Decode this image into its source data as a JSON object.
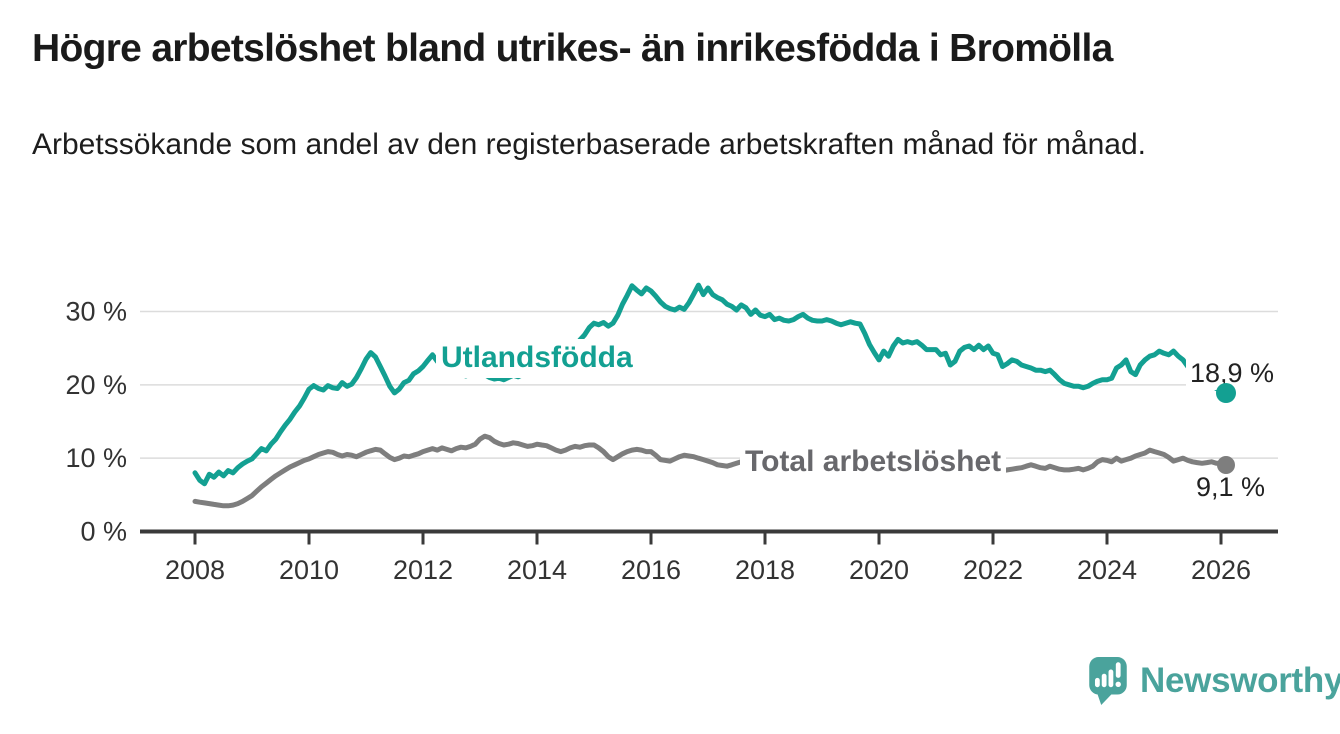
{
  "header": {
    "title": "Högre arbetslöshet bland utrikes- än inrikesfödda i Bromölla",
    "subtitle": "Arbetssökande som andel av den registerbaserade arbetskraften månad för månad."
  },
  "chart_data": {
    "type": "line",
    "title": "Högre arbetslöshet bland utrikes- än inrikesfödda i Bromölla",
    "subtitle": "Arbetssökande som andel av den registerbaserade arbetskraften månad för månad.",
    "unit": "%",
    "x_start": 2008.0,
    "x_resolution": "monthly",
    "x_range_note": "2008-01 to 2026-02",
    "x_ticks": [
      2008,
      2010,
      2012,
      2014,
      2016,
      2018,
      2020,
      2022,
      2024,
      2026
    ],
    "y_ticks": [
      0,
      10,
      20,
      30
    ],
    "y_tick_labels": [
      "0 %",
      "10 %",
      "20 %",
      "30 %"
    ],
    "ylim": [
      0,
      36
    ],
    "grid": "horizontal",
    "colors": {
      "grid": "#dcdcdc",
      "axis": "#3a3a3a",
      "tick_text": "#333333",
      "end_label_text": "#222222"
    },
    "series": [
      {
        "name": "Utlandsfödda",
        "color": "#13a092",
        "label_color": "#13a092",
        "end_label": "18,9 %",
        "end_value": 18.9,
        "values": [
          8.0,
          7.0,
          6.5,
          7.8,
          7.4,
          8.1,
          7.6,
          8.3,
          8.0,
          8.7,
          9.2,
          9.6,
          9.9,
          10.6,
          11.3,
          11.0,
          11.9,
          12.6,
          13.6,
          14.5,
          15.3,
          16.3,
          17.1,
          18.2,
          19.4,
          19.9,
          19.5,
          19.3,
          19.9,
          19.6,
          19.5,
          20.3,
          19.8,
          20.1,
          21.0,
          22.2,
          23.5,
          24.4,
          23.8,
          22.5,
          21.2,
          19.8,
          18.9,
          19.4,
          20.3,
          20.6,
          21.5,
          21.9,
          22.5,
          23.3,
          24.1,
          23.2,
          22.6,
          22.0,
          21.6,
          21.9,
          21.5,
          21.2,
          21.6,
          21.3,
          21.8,
          21.4,
          21.0,
          20.8,
          20.9,
          20.7,
          21.0,
          21.3,
          21.1,
          21.4,
          21.6,
          21.5,
          21.7,
          21.9,
          21.8,
          22.0,
          22.2,
          22.7,
          23.4,
          24.2,
          25.2,
          26.1,
          26.8,
          27.8,
          28.4,
          28.2,
          28.5,
          28.0,
          28.4,
          29.5,
          31.0,
          32.2,
          33.5,
          32.9,
          32.4,
          33.2,
          32.8,
          32.1,
          31.3,
          30.7,
          30.4,
          30.2,
          30.6,
          30.3,
          31.2,
          32.4,
          33.6,
          32.3,
          33.2,
          32.3,
          31.9,
          31.6,
          31.0,
          30.7,
          30.2,
          30.9,
          30.5,
          29.6,
          30.2,
          29.5,
          29.3,
          29.6,
          28.9,
          29.1,
          28.8,
          28.7,
          28.9,
          29.3,
          29.6,
          29.1,
          28.8,
          28.7,
          28.7,
          28.9,
          28.7,
          28.4,
          28.2,
          28.4,
          28.6,
          28.4,
          28.3,
          27.0,
          25.5,
          24.4,
          23.4,
          24.6,
          23.9,
          25.3,
          26.2,
          25.7,
          25.9,
          25.7,
          25.9,
          25.4,
          24.8,
          24.8,
          24.8,
          24.1,
          24.3,
          22.7,
          23.2,
          24.6,
          25.1,
          25.3,
          24.8,
          25.4,
          24.8,
          25.3,
          24.3,
          24.1,
          22.5,
          22.9,
          23.4,
          23.2,
          22.7,
          22.5,
          22.3,
          22.0,
          22.0,
          21.8,
          22.0,
          21.4,
          20.7,
          20.2,
          20.0,
          19.8,
          19.8,
          19.6,
          19.8,
          20.2,
          20.5,
          20.7,
          20.7,
          20.9,
          22.3,
          22.7,
          23.4,
          21.8,
          21.4,
          22.7,
          23.4,
          23.9,
          24.1,
          24.6,
          24.3,
          24.1,
          24.6,
          23.9,
          23.4,
          22.5,
          22.0,
          21.6,
          21.4,
          21.1,
          20.3,
          19.5,
          19.2,
          18.9
        ]
      },
      {
        "name": "Total arbetslöshet",
        "color": "#7e7e7e",
        "label_color": "#68686c",
        "end_label": "9,1 %",
        "end_value": 9.1,
        "values": [
          4.1,
          4.0,
          3.9,
          3.8,
          3.7,
          3.6,
          3.5,
          3.5,
          3.6,
          3.8,
          4.1,
          4.5,
          4.9,
          5.5,
          6.1,
          6.6,
          7.1,
          7.6,
          8.0,
          8.4,
          8.8,
          9.1,
          9.4,
          9.7,
          9.9,
          10.2,
          10.5,
          10.7,
          10.9,
          10.8,
          10.5,
          10.3,
          10.5,
          10.4,
          10.2,
          10.5,
          10.8,
          11.0,
          11.2,
          11.1,
          10.6,
          10.1,
          9.8,
          10.0,
          10.3,
          10.2,
          10.4,
          10.6,
          10.9,
          11.1,
          11.3,
          11.1,
          11.4,
          11.2,
          11.0,
          11.3,
          11.5,
          11.4,
          11.6,
          11.9,
          12.6,
          13.0,
          12.8,
          12.3,
          12.0,
          11.8,
          11.9,
          12.1,
          12.0,
          11.8,
          11.6,
          11.7,
          11.9,
          11.8,
          11.7,
          11.4,
          11.1,
          10.9,
          11.1,
          11.4,
          11.6,
          11.5,
          11.7,
          11.8,
          11.8,
          11.4,
          10.9,
          10.2,
          9.8,
          10.2,
          10.6,
          10.9,
          11.1,
          11.2,
          11.1,
          10.9,
          10.9,
          10.4,
          9.8,
          9.7,
          9.6,
          9.9,
          10.2,
          10.4,
          10.3,
          10.2,
          10.0,
          9.8,
          9.6,
          9.4,
          9.1,
          9.0,
          8.9,
          9.1,
          9.3,
          9.5,
          9.6,
          9.8,
          9.5,
          9.2,
          9.0,
          8.9,
          8.9,
          9.2,
          9.3,
          9.2,
          9.1,
          9.0,
          8.9,
          8.9,
          8.8,
          8.8,
          8.7,
          8.6,
          8.5,
          8.4,
          8.4,
          8.3,
          8.3,
          8.2,
          8.2,
          8.1,
          8.1,
          8.2,
          8.3,
          8.4,
          8.6,
          8.9,
          9.0,
          9.0,
          8.9,
          8.8,
          8.8,
          8.7,
          8.6,
          8.6,
          8.6,
          8.5,
          8.5,
          8.4,
          8.4,
          8.3,
          8.3,
          8.2,
          8.2,
          8.1,
          8.1,
          8.0,
          8.1,
          8.2,
          8.3,
          8.4,
          8.5,
          8.6,
          8.7,
          8.9,
          9.1,
          8.9,
          8.7,
          8.6,
          8.9,
          8.7,
          8.5,
          8.4,
          8.4,
          8.5,
          8.6,
          8.4,
          8.6,
          8.9,
          9.5,
          9.8,
          9.7,
          9.5,
          10.0,
          9.6,
          9.8,
          10.0,
          10.3,
          10.5,
          10.7,
          11.1,
          10.9,
          10.7,
          10.5,
          10.1,
          9.6,
          9.8,
          10.0,
          9.7,
          9.5,
          9.4,
          9.3,
          9.4,
          9.5,
          9.3,
          9.3,
          9.1
        ]
      }
    ]
  },
  "branding": {
    "logo_text": "Newsworthy",
    "logo_color": "#4aa39c"
  }
}
